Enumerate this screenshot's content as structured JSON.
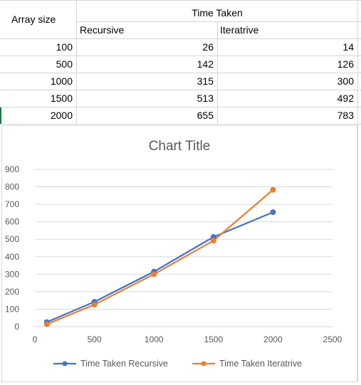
{
  "table": {
    "header_array_size": "Array size",
    "header_time_taken": "Time Taken",
    "header_recursive": "Recursive",
    "header_iterative": "Iteratrive",
    "rows": [
      {
        "size": "100",
        "recursive": "26",
        "iterative": "14"
      },
      {
        "size": "500",
        "recursive": "142",
        "iterative": "126"
      },
      {
        "size": "1000",
        "recursive": "315",
        "iterative": "300"
      },
      {
        "size": "1500",
        "recursive": "513",
        "iterative": "492"
      },
      {
        "size": "2000",
        "recursive": "655",
        "iterative": "783"
      }
    ]
  },
  "chart_data": {
    "type": "line",
    "title": "Chart Title",
    "xlabel": "",
    "ylabel": "",
    "xlim": [
      0,
      2500
    ],
    "ylim": [
      0,
      900
    ],
    "xticks": [
      0,
      500,
      1000,
      1500,
      2000,
      2500
    ],
    "yticks": [
      0,
      100,
      200,
      300,
      400,
      500,
      600,
      700,
      800,
      900
    ],
    "grid": "horizontal",
    "legend": "bottom",
    "x": [
      100,
      500,
      1000,
      1500,
      2000
    ],
    "series": [
      {
        "name": "Time Taken Recursive",
        "values": [
          26,
          142,
          315,
          513,
          655
        ],
        "color": "#4472c4"
      },
      {
        "name": "Time Taken Iteratrive",
        "values": [
          14,
          126,
          300,
          492,
          783
        ],
        "color": "#ed7d31"
      }
    ]
  }
}
